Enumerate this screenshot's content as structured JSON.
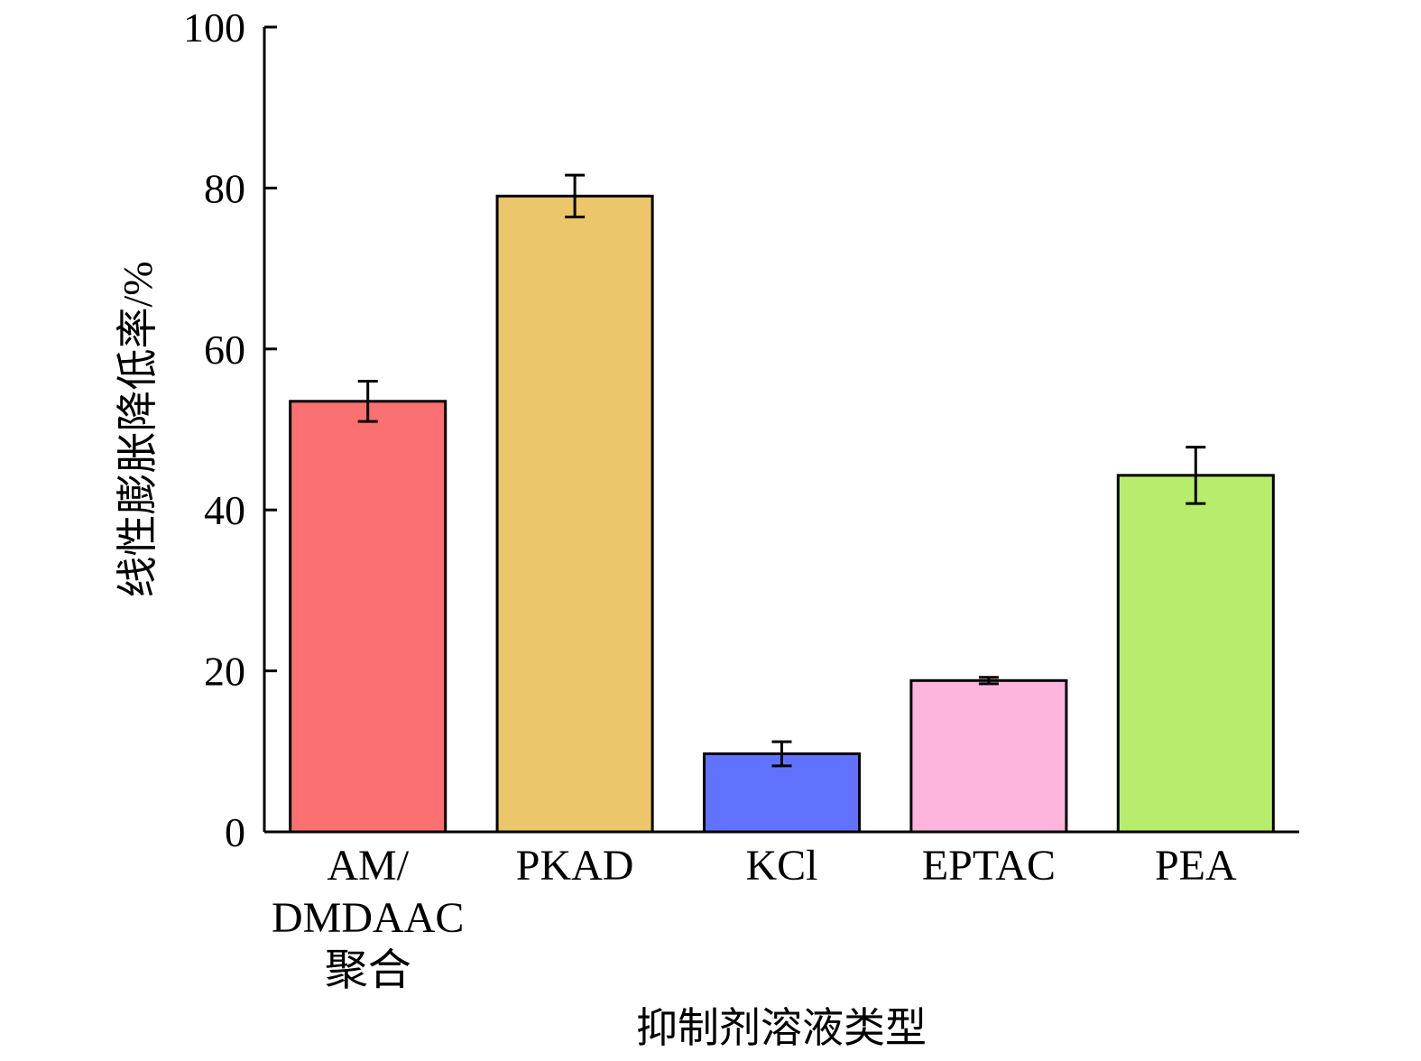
{
  "chart_data": {
    "type": "bar",
    "title": "",
    "xlabel": "抑制剂溶液类型",
    "ylabel": "线性膨胀降低率/%",
    "ylim": [
      0,
      100
    ],
    "yticks": [
      "0",
      "20",
      "40",
      "60",
      "80",
      "100"
    ],
    "grid": false,
    "legend": "none",
    "categories": [
      [
        "AM/",
        "DMDAAC",
        "聚合"
      ],
      [
        "PKAD"
      ],
      [
        "KCl"
      ],
      [
        "EPTAC"
      ],
      [
        "PEA"
      ]
    ],
    "values": [
      53.5,
      79,
      9.7,
      18.8,
      44.3
    ],
    "errors": [
      2.5,
      2.6,
      1.5,
      0.4,
      3.5
    ],
    "colors": [
      "#fb7070",
      "#ebc66a",
      "#6173fd",
      "#fdb4dd",
      "#b8ec6c"
    ]
  }
}
